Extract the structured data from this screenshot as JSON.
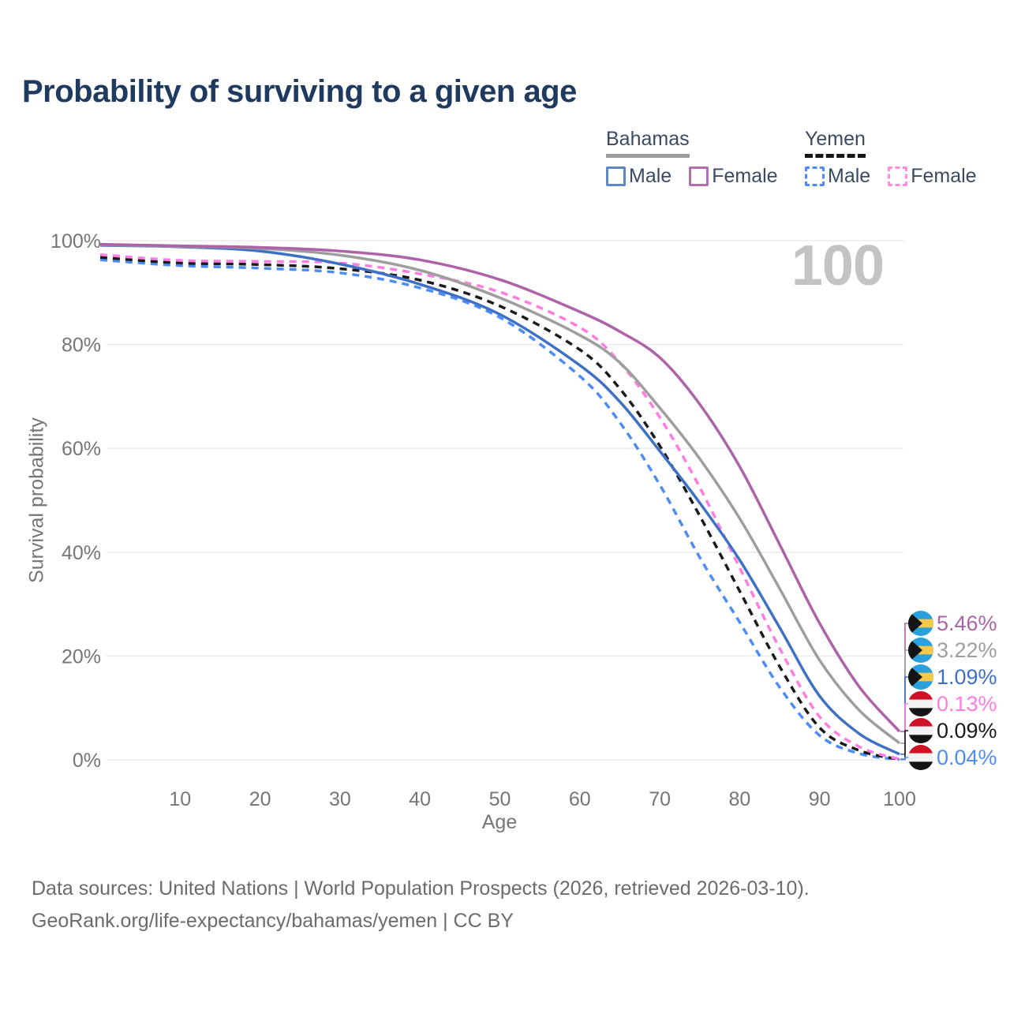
{
  "title": "Probability of surviving to a given age",
  "watermark": "100",
  "legend": {
    "groups": [
      {
        "name": "Bahamas",
        "style": "solid",
        "underline_color": "#9e9e9e",
        "items": [
          {
            "label": "Male",
            "color": "#5c87ca",
            "dash": false
          },
          {
            "label": "Female",
            "color": "#b06fac",
            "dash": false
          }
        ]
      },
      {
        "name": "Yemen",
        "style": "dashed",
        "underline_color": "#161616",
        "items": [
          {
            "label": "Male",
            "color": "#4d8cf6",
            "dash": true
          },
          {
            "label": "Female",
            "color": "#ff8be3",
            "dash": true
          }
        ]
      }
    ]
  },
  "axes": {
    "x_label": "Age",
    "y_label": "Survival probability",
    "x_ticks": [
      10,
      20,
      30,
      40,
      50,
      60,
      70,
      80,
      90,
      100
    ],
    "y_ticks": [
      {
        "value": 0,
        "label": "0%"
      },
      {
        "value": 20,
        "label": "20%"
      },
      {
        "value": 40,
        "label": "40%"
      },
      {
        "value": 60,
        "label": "60%"
      },
      {
        "value": 80,
        "label": "80%"
      },
      {
        "value": 100,
        "label": "100%"
      }
    ],
    "x_range": [
      0,
      100
    ],
    "y_range": [
      0,
      100
    ]
  },
  "flags": {
    "bahamas": {
      "blue": "#2aa0dc",
      "gold": "#f6c84c",
      "black": "#141414"
    },
    "yemen": {
      "red": "#ce1126",
      "white": "#f2f2f2",
      "black": "#141414"
    }
  },
  "chart_data": {
    "type": "line",
    "title": "Probability of surviving to a given age",
    "xlabel": "Age",
    "ylabel": "Survival probability",
    "xlim": [
      0,
      100
    ],
    "ylim": [
      0,
      100
    ],
    "grid": "horizontal",
    "x": [
      0,
      10,
      20,
      30,
      40,
      50,
      60,
      65,
      70,
      75,
      80,
      85,
      90,
      95,
      100
    ],
    "series": [
      {
        "id": "bahamas-female",
        "name": "Bahamas Female",
        "country": "Bahamas",
        "sex": "Female",
        "color": "#ae63a8",
        "dashed": false,
        "flag": "bahamas",
        "end_label": "5.46%",
        "values": [
          99.3,
          99.0,
          98.7,
          98.0,
          96.3,
          92.5,
          86.3,
          82.5,
          77.5,
          68.5,
          56.5,
          41.5,
          26.3,
          14.0,
          5.46
        ]
      },
      {
        "id": "bahamas-all",
        "name": "Bahamas",
        "country": "Bahamas",
        "sex": "All",
        "color": "#9e9e9e",
        "dashed": false,
        "flag": "bahamas",
        "end_label": "3.22%",
        "values": [
          99.2,
          98.9,
          98.5,
          97.2,
          94.3,
          89.0,
          81.8,
          76.5,
          67.8,
          58.0,
          46.5,
          33.0,
          19.2,
          9.5,
          3.22
        ]
      },
      {
        "id": "bahamas-male",
        "name": "Bahamas Male",
        "country": "Bahamas",
        "sex": "Male",
        "color": "#3e70c4",
        "dashed": false,
        "flag": "bahamas",
        "end_label": "1.09%",
        "values": [
          99.1,
          98.8,
          98.0,
          95.5,
          91.6,
          85.8,
          76.0,
          69.0,
          59.5,
          49.5,
          38.5,
          25.5,
          12.3,
          5.0,
          1.09
        ]
      },
      {
        "id": "yemen-female",
        "name": "Yemen Female",
        "country": "Yemen",
        "sex": "Female",
        "color": "#ff7de1",
        "dashed": true,
        "flag": "yemen",
        "end_label": "0.13%",
        "values": [
          97.3,
          96.2,
          96.0,
          95.7,
          93.6,
          90.1,
          83.3,
          76.5,
          66.0,
          52.5,
          37.0,
          21.5,
          8.3,
          2.5,
          0.13
        ]
      },
      {
        "id": "yemen-all",
        "name": "Yemen",
        "country": "Yemen",
        "sex": "All",
        "color": "#1a1a1a",
        "dashed": true,
        "flag": "yemen",
        "end_label": "0.09%",
        "values": [
          96.8,
          95.7,
          95.4,
          94.6,
          92.4,
          87.4,
          79.0,
          71.5,
          60.5,
          47.0,
          32.5,
          18.0,
          6.2,
          1.8,
          0.09
        ]
      },
      {
        "id": "yemen-male",
        "name": "Yemen Male",
        "country": "Yemen",
        "sex": "Male",
        "color": "#4d8cf6",
        "dashed": true,
        "flag": "yemen",
        "end_label": "0.04%",
        "values": [
          96.3,
          95.2,
          94.7,
          93.8,
          90.9,
          85.2,
          73.9,
          65.0,
          53.0,
          39.0,
          26.5,
          14.0,
          4.7,
          1.2,
          0.04
        ]
      }
    ]
  },
  "footer": {
    "line1": "Data sources: United Nations | World Population Prospects (2026, retrieved 2026-03-10).",
    "line2": "GeoRank.org/life-expectancy/bahamas/yemen | CC BY"
  }
}
